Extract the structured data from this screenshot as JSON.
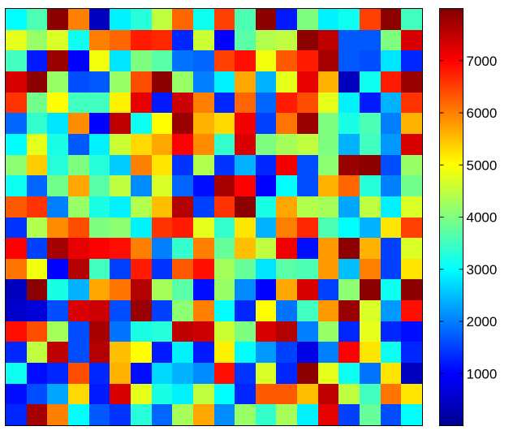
{
  "chart_data": {
    "type": "heatmap",
    "title": "",
    "xlabel": "",
    "ylabel": "",
    "rows": 20,
    "cols": 20,
    "colormap": "jet",
    "clim": [
      1,
      8000
    ],
    "colorbar": {
      "ticks": [
        1000,
        2000,
        3000,
        4000,
        5000,
        6000,
        7000
      ],
      "tick_labels": [
        "1000",
        "2000",
        "3000",
        "4000",
        "5000",
        "6000",
        "7000"
      ]
    },
    "values": [
      [
        3000,
        3600,
        7900,
        6000,
        500,
        2900,
        3300,
        4500,
        6200,
        3100,
        6500,
        3600,
        7900,
        1200,
        4000,
        2900,
        3100,
        6500,
        7900,
        3500
      ],
      [
        4800,
        4200,
        4700,
        3100,
        6000,
        6200,
        6800,
        6700,
        1300,
        4600,
        1000,
        3700,
        4400,
        4500,
        7900,
        7500,
        1700,
        1700,
        4000,
        7300
      ],
      [
        3500,
        1200,
        7800,
        1000,
        4900,
        2800,
        4000,
        3700,
        1900,
        1800,
        6500,
        6900,
        4900,
        6300,
        6800,
        7700,
        1700,
        1600,
        2800,
        1300
      ],
      [
        7300,
        7900,
        4200,
        1600,
        1700,
        4200,
        6400,
        7900,
        4200,
        2000,
        2900,
        5700,
        2400,
        4800,
        7200,
        5600,
        500,
        3100,
        6800,
        7800
      ],
      [
        6600,
        3900,
        5000,
        3500,
        3500,
        5100,
        7200,
        1200,
        7400,
        6000,
        1300,
        6200,
        1800,
        6800,
        6400,
        4800,
        2900,
        1200,
        2400,
        6600
      ],
      [
        1800,
        3400,
        2800,
        5900,
        1000,
        7500,
        3100,
        5000,
        7800,
        5600,
        5300,
        7100,
        1500,
        6100,
        7800,
        4000,
        3200,
        3600,
        2000,
        5600
      ],
      [
        3000,
        4800,
        3200,
        1700,
        2900,
        4600,
        5300,
        5700,
        7000,
        5900,
        3400,
        7300,
        4000,
        4300,
        4500,
        4000,
        2400,
        3500,
        2200,
        7300
      ],
      [
        4100,
        5400,
        3300,
        4000,
        3300,
        2600,
        6000,
        5200,
        1400,
        4400,
        1400,
        2400,
        1300,
        7100,
        1600,
        4100,
        7800,
        7900,
        1600,
        4200
      ],
      [
        3100,
        1800,
        3900,
        5700,
        3700,
        4500,
        2100,
        4700,
        1800,
        1100,
        7700,
        7000,
        1000,
        3000,
        1600,
        5600,
        6200,
        3300,
        2000,
        3900
      ],
      [
        6300,
        6600,
        2000,
        4200,
        3200,
        2900,
        4400,
        5500,
        7600,
        1500,
        6600,
        7900,
        3200,
        5700,
        4400,
        4300,
        2300,
        4500,
        2900,
        4700
      ],
      [
        1400,
        4400,
        5900,
        6400,
        4000,
        4100,
        2900,
        6600,
        6800,
        4800,
        3400,
        5200,
        2400,
        6000,
        6700,
        3600,
        3000,
        2400,
        5200,
        6500
      ],
      [
        7000,
        1500,
        7700,
        7200,
        7000,
        6900,
        6000,
        2000,
        3400,
        6000,
        3800,
        5500,
        4500,
        7100,
        1100,
        5800,
        7900,
        5600,
        1500,
        4700
      ],
      [
        6100,
        4900,
        1000,
        7600,
        3500,
        1500,
        6800,
        1400,
        6300,
        6900,
        4300,
        3800,
        2800,
        3700,
        3600,
        5800,
        2500,
        6000,
        1500,
        5200
      ],
      [
        500,
        7900,
        3200,
        2400,
        5700,
        6100,
        7600,
        4300,
        3700,
        1100,
        4200,
        2100,
        1000,
        5700,
        7300,
        1500,
        4100,
        7900,
        3100,
        7900
      ],
      [
        600,
        700,
        1600,
        7300,
        7400,
        1600,
        7800,
        1500,
        4100,
        6000,
        3000,
        1300,
        5000,
        1900,
        3500,
        5800,
        7800,
        4700,
        2200,
        6900
      ],
      [
        6900,
        6400,
        4300,
        1600,
        7700,
        1900,
        3200,
        3300,
        7500,
        7400,
        4600,
        4000,
        7300,
        7600,
        2000,
        4200,
        1300,
        4800,
        1300,
        1100
      ],
      [
        1300,
        4500,
        7500,
        1600,
        7600,
        5500,
        5000,
        1200,
        2900,
        1200,
        5100,
        3000,
        2200,
        1500,
        800,
        2000,
        7000,
        5200,
        3100,
        1300
      ],
      [
        3100,
        1100,
        1300,
        6400,
        1300,
        5600,
        1100,
        2700,
        2400,
        2100,
        6900,
        1400,
        4700,
        1300,
        7900,
        4800,
        3100,
        1900,
        5200,
        500
      ],
      [
        1100,
        1600,
        2300,
        5300,
        1200,
        7300,
        4800,
        3200,
        2900,
        4500,
        3000,
        1300,
        6300,
        6300,
        5500,
        7500,
        4500,
        3500,
        6100,
        5200
      ],
      [
        1300,
        7700,
        6000,
        3000,
        1700,
        1400,
        3300,
        1800,
        4300,
        5700,
        2100,
        4200,
        3400,
        4300,
        2900,
        7200,
        1500,
        3800,
        1600,
        3000
      ]
    ]
  }
}
